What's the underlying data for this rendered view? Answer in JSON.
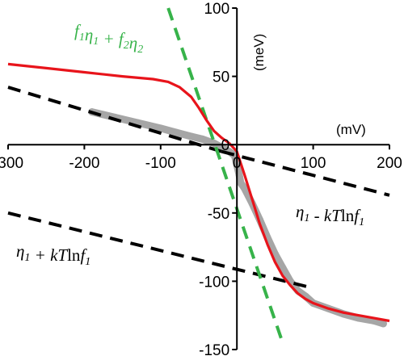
{
  "chart_data": {
    "type": "line",
    "xlim": [
      -300,
      200
    ],
    "ylim": [
      -150,
      100
    ],
    "x_ticks": [
      -300,
      -200,
      -100,
      0,
      100,
      200
    ],
    "y_ticks": [
      100,
      50,
      0,
      -50,
      -100,
      -150
    ],
    "x_tick_labels": [
      "-300",
      "-200",
      "-100",
      "0",
      "100",
      "200"
    ],
    "y_tick_labels": [
      "100",
      "50",
      "0",
      "-50",
      "-100",
      "-150"
    ],
    "xlabel": "(mV)",
    "ylabel": "(meV)",
    "grid": false,
    "legend": "none",
    "colors": {
      "data": "#a6a6a6",
      "model": "#e8141b",
      "linear": "#37b34a",
      "asymptote": "#000000"
    },
    "series": [
      {
        "style": "gray-markers",
        "x": [
          -190,
          -160,
          -130,
          -100,
          -80,
          -60,
          -45,
          -30,
          -20,
          -10,
          -3,
          3,
          5,
          10,
          20,
          30,
          40,
          50,
          60,
          70,
          80,
          90,
          100,
          120,
          140,
          160,
          180,
          192
        ],
        "y": [
          24,
          20,
          16,
          12,
          9,
          6,
          4,
          1,
          -2,
          -5,
          -8,
          -22,
          -28,
          -32,
          -43,
          -55,
          -68,
          -80,
          -90,
          -100,
          -107,
          -111,
          -116,
          -120,
          -124,
          -127,
          -129,
          -131
        ]
      },
      {
        "style": "red-line",
        "x": [
          -300,
          -250,
          -200,
          -150,
          -110,
          -90,
          -75,
          -60,
          -50,
          -40,
          -30,
          -20,
          -10,
          0,
          10,
          20,
          30,
          40,
          50,
          60,
          70,
          80,
          90,
          100,
          120,
          140,
          160,
          180,
          200
        ],
        "y": [
          59,
          56,
          53,
          50,
          48,
          46,
          42,
          35,
          27,
          18,
          10,
          5,
          1,
          -5,
          -22,
          -40,
          -58,
          -73,
          -86,
          -96,
          -103,
          -109,
          -113,
          -116,
          -120,
          -123,
          -125,
          -127,
          -129
        ]
      },
      {
        "style": "green-dashed",
        "x": [
          -90,
          60
        ],
        "y": [
          100,
          -145
        ]
      },
      {
        "style": "black-dashed",
        "x": [
          -300,
          -20
        ],
        "y": [
          42,
          -5
        ]
      },
      {
        "style": "black-dashed",
        "x": [
          -20,
          200
        ],
        "y": [
          -5,
          -37
        ]
      },
      {
        "style": "black-dashed",
        "x": [
          -300,
          100
        ],
        "y": [
          -50,
          -105
        ]
      }
    ],
    "annotations": [
      {
        "id": "green",
        "color": "#37b34a",
        "parts": [
          [
            "f",
            "1"
          ],
          [
            "η",
            "1"
          ],
          [
            " + f",
            "2"
          ],
          [
            "η",
            "2"
          ]
        ]
      },
      {
        "id": "right",
        "color": "#000000",
        "parts": [
          [
            "η",
            "1"
          ],
          [
            " -  kT",
            ""
          ],
          [
            "ln",
            ""
          ],
          [
            "f",
            "1"
          ]
        ]
      },
      {
        "id": "left",
        "color": "#000000",
        "parts": [
          [
            "η",
            "1"
          ],
          [
            " + kT",
            ""
          ],
          [
            "ln",
            ""
          ],
          [
            "f",
            "1"
          ]
        ]
      }
    ]
  }
}
